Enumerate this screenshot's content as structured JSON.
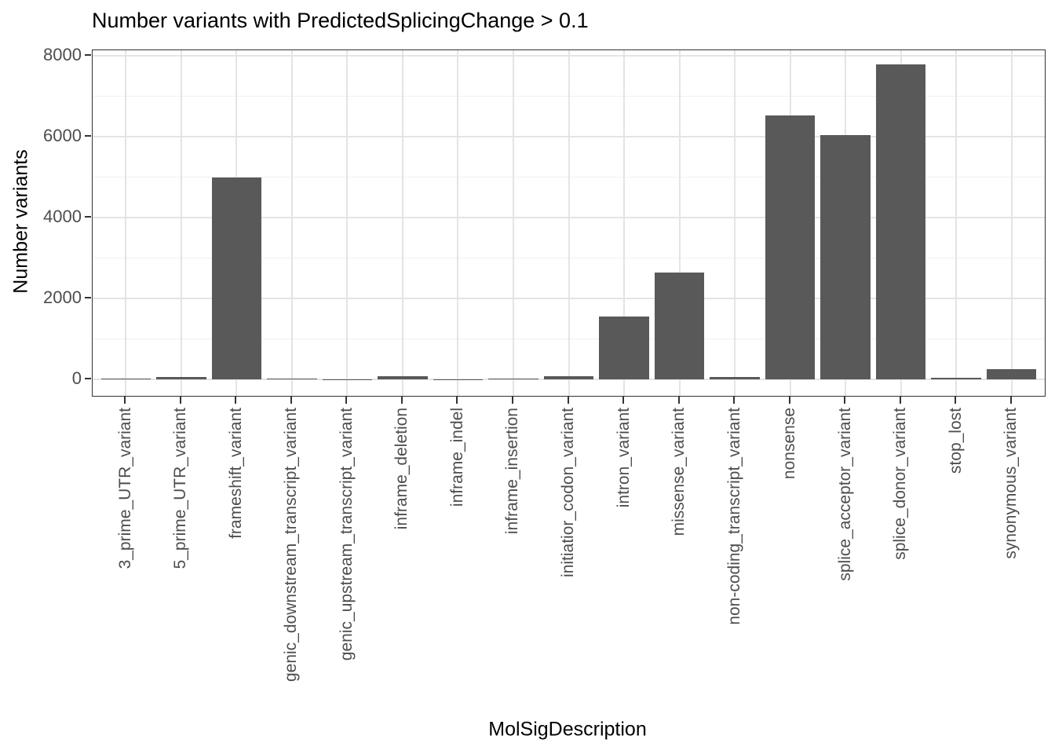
{
  "chart_data": {
    "type": "bar",
    "title": "Number variants with PredictedSplicingChange > 0.1",
    "xlabel": "MolSigDescription",
    "ylabel": "Number variants",
    "categories": [
      "3_prime_UTR_variant",
      "5_prime_UTR_variant",
      "frameshift_variant",
      "genic_downstream_transcript_variant",
      "genic_upstream_transcript_variant",
      "inframe_deletion",
      "inframe_indel",
      "inframe_insertion",
      "initiatior_codon_variant",
      "intron_variant",
      "missense_variant",
      "non-coding_transcript_variant",
      "nonsense",
      "splice_acceptor_variant",
      "splice_donor_variant",
      "stop_lost",
      "synonymous_variant"
    ],
    "values": [
      28,
      52,
      5000,
      28,
      5,
      80,
      3,
      27,
      70,
      1550,
      2650,
      60,
      6530,
      6030,
      7780,
      35,
      245
    ],
    "ylim": [
      0,
      8000
    ],
    "yticks": [
      0,
      2000,
      4000,
      6000,
      8000
    ],
    "yticks_minor": [
      1000,
      3000,
      5000,
      7000
    ],
    "grid": true,
    "legend": "none",
    "colors": {
      "bar": "#595959",
      "panel_border": "#333333",
      "tick": "#333333",
      "tick_label": "#4d4d4d",
      "grid_major": "#e4e4e4",
      "grid_minor": "#f0f0f0",
      "title": "#000000",
      "background": "#ffffff"
    }
  }
}
